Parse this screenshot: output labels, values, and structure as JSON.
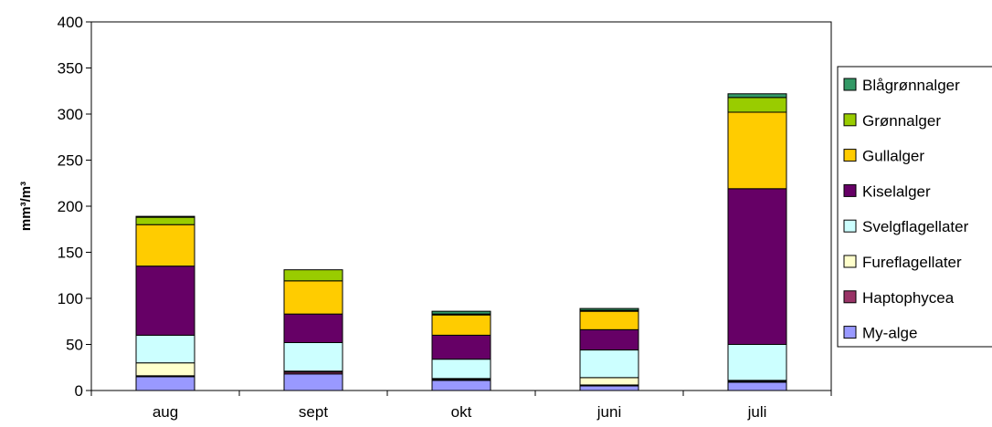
{
  "chart_data": {
    "type": "bar",
    "stacked": true,
    "title": "",
    "xlabel": "",
    "ylabel": "mm³/m³",
    "ylim": [
      0,
      400
    ],
    "yticks": [
      0,
      50,
      100,
      150,
      200,
      250,
      300,
      350,
      400
    ],
    "grid": false,
    "legend_position": "right",
    "categories": [
      "aug",
      "sept",
      "okt",
      "juni",
      "juli"
    ],
    "series": [
      {
        "name": "My-alge",
        "color": "#9999ff",
        "values": [
          15,
          18,
          11,
          5,
          9
        ]
      },
      {
        "name": "Haptophycea",
        "color": "#993366",
        "values": [
          1,
          2,
          1,
          1,
          1
        ]
      },
      {
        "name": "Fureflagellater",
        "color": "#ffffcc",
        "values": [
          14,
          1,
          1,
          8,
          1
        ]
      },
      {
        "name": "Svelgflagellater",
        "color": "#ccffff",
        "values": [
          30,
          31,
          21,
          30,
          39
        ]
      },
      {
        "name": "Kiselalger",
        "color": "#660066",
        "values": [
          75,
          31,
          26,
          22,
          169
        ]
      },
      {
        "name": "Gullalger",
        "color": "#ffcc00",
        "values": [
          45,
          36,
          22,
          20,
          83
        ]
      },
      {
        "name": "Grønnalger",
        "color": "#99cc00",
        "values": [
          8,
          12,
          1,
          1,
          16
        ]
      },
      {
        "name": "Blågrønnalger",
        "color": "#339966",
        "values": [
          1,
          0,
          3,
          2,
          4
        ]
      }
    ]
  }
}
